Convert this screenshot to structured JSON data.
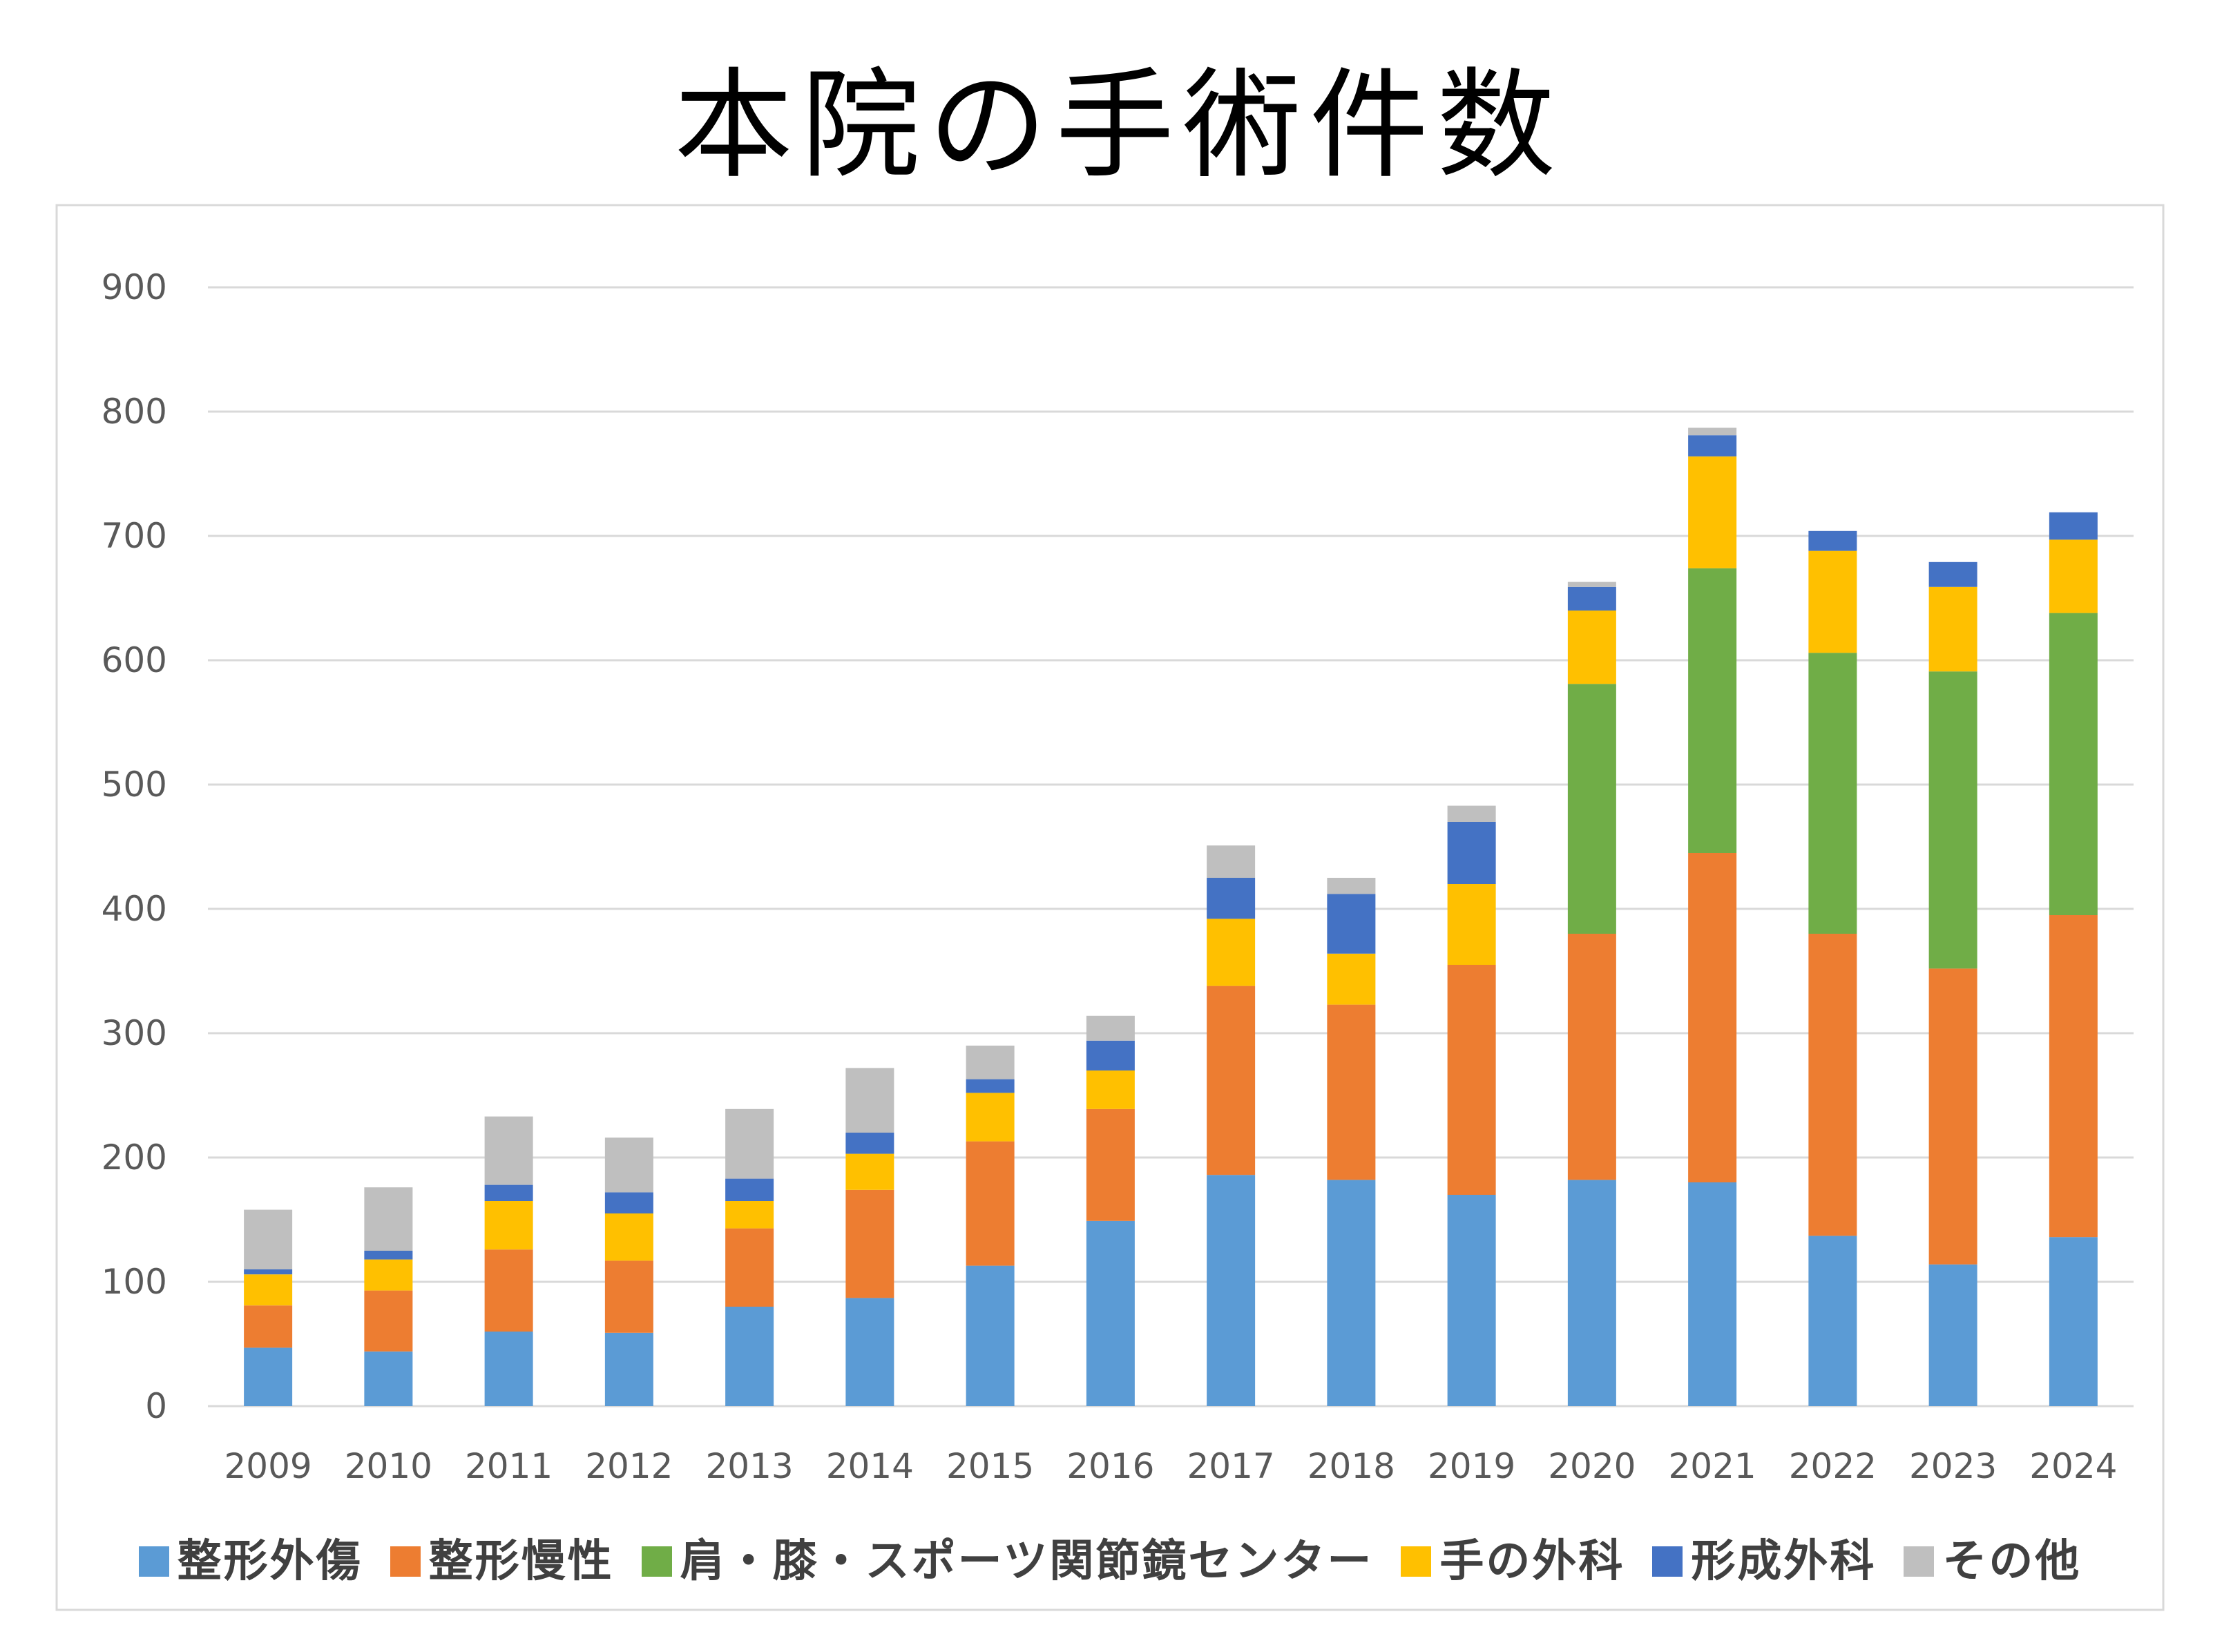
{
  "chart_data": {
    "type": "bar",
    "stacked": true,
    "title": "本院の手術件数",
    "xlabel": "",
    "ylabel": "",
    "ylim": [
      0,
      900
    ],
    "yticks": [
      0,
      100,
      200,
      300,
      400,
      500,
      600,
      700,
      800,
      900
    ],
    "grid": true,
    "legend_position": "bottom",
    "categories": [
      "2009",
      "2010",
      "2011",
      "2012",
      "2013",
      "2014",
      "2015",
      "2016",
      "2017",
      "2018",
      "2019",
      "2020",
      "2021",
      "2022",
      "2023",
      "2024"
    ],
    "series": [
      {
        "name": "整形外傷",
        "color": "#5B9BD5",
        "values": [
          47,
          44,
          60,
          59,
          80,
          87,
          113,
          149,
          186,
          182,
          170,
          182,
          180,
          137,
          114,
          136
        ]
      },
      {
        "name": "整形慢性",
        "color": "#ED7D31",
        "values": [
          34,
          49,
          66,
          58,
          63,
          87,
          100,
          90,
          152,
          141,
          185,
          198,
          265,
          243,
          238,
          259
        ]
      },
      {
        "name": "肩・膝・スポーツ関節鏡センター",
        "color": "#70AD47",
        "values": [
          0,
          0,
          0,
          0,
          0,
          0,
          0,
          0,
          0,
          0,
          0,
          201,
          229,
          226,
          239,
          243
        ]
      },
      {
        "name": "手の外科",
        "color": "#FFC000",
        "values": [
          25,
          25,
          39,
          38,
          22,
          29,
          39,
          31,
          54,
          41,
          65,
          59,
          90,
          82,
          68,
          59
        ]
      },
      {
        "name": "形成外科",
        "color": "#4472C4",
        "values": [
          4,
          7,
          13,
          17,
          18,
          17,
          11,
          24,
          33,
          48,
          50,
          19,
          17,
          16,
          20,
          22
        ]
      },
      {
        "name": "その他",
        "color": "#BFBFBF",
        "values": [
          48,
          51,
          55,
          44,
          56,
          52,
          27,
          20,
          26,
          13,
          13,
          4,
          6,
          0,
          0,
          0
        ]
      }
    ]
  }
}
